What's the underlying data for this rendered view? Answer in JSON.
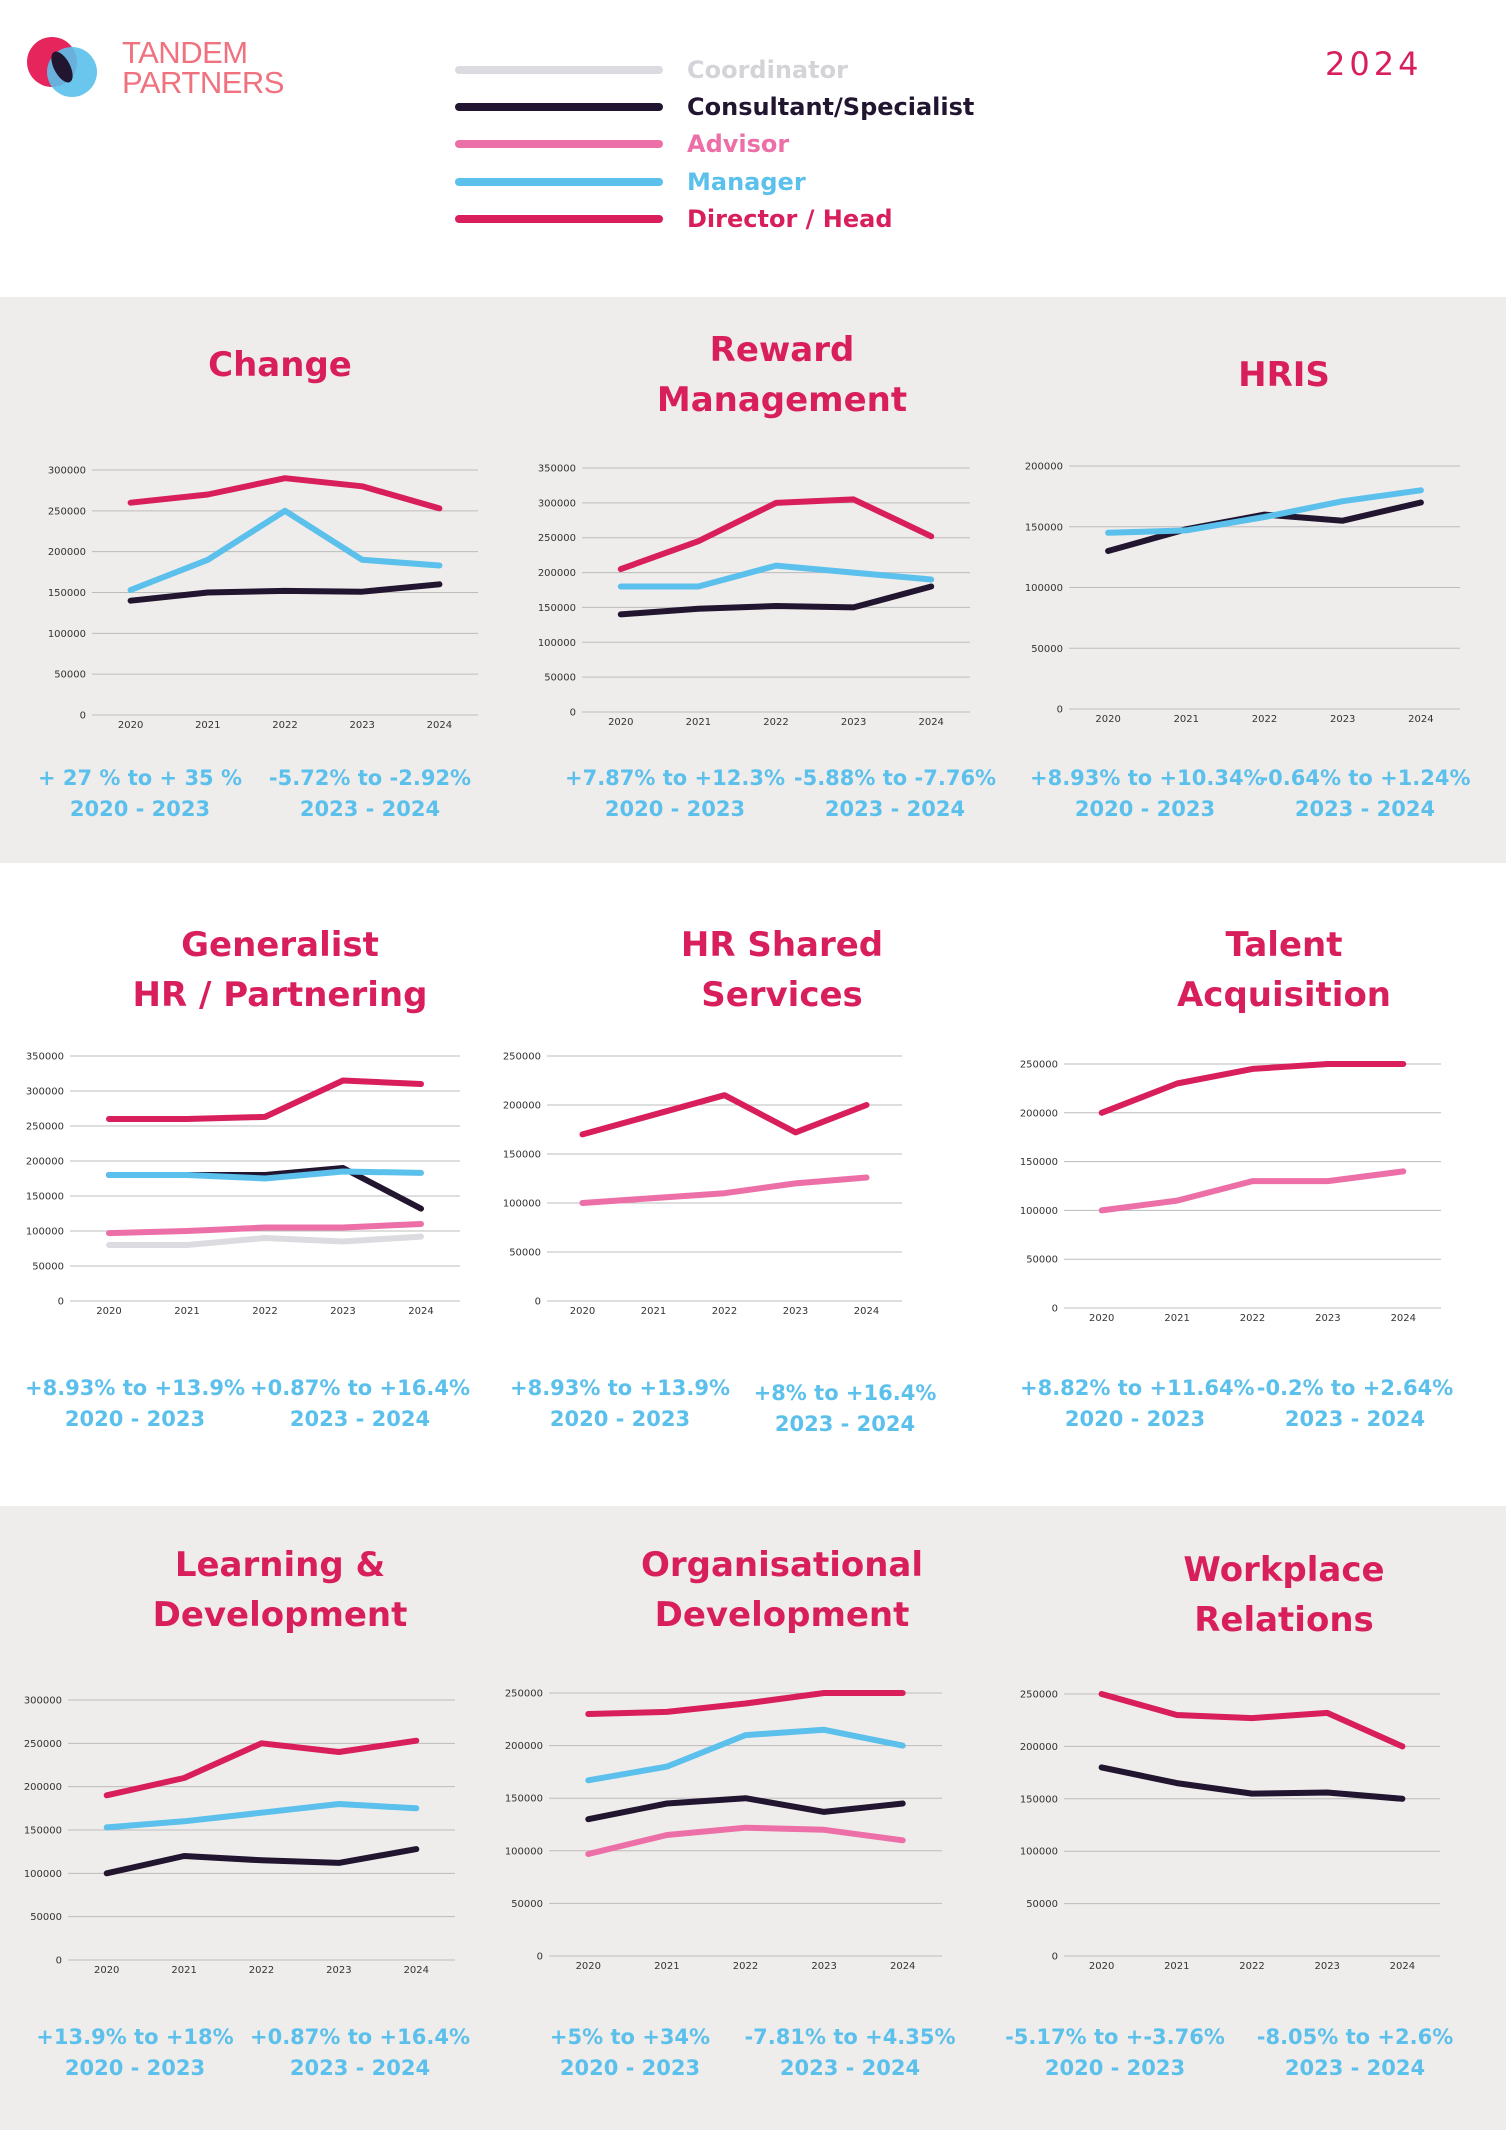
{
  "brand": {
    "name_line1": "TANDEM",
    "name_line2": "PARTNERS"
  },
  "year": "2024",
  "legend": [
    {
      "label": "Coordinator",
      "color": "#dcdbe0"
    },
    {
      "label": "Consultant/Specialist",
      "color": "#211530"
    },
    {
      "label": "Advisor",
      "color": "#ec6fa7"
    },
    {
      "label": "Manager",
      "color": "#5bc0eb"
    },
    {
      "label": "Director / Head",
      "color": "#d81f5c"
    }
  ],
  "chart_data": [
    {
      "type": "line",
      "title": "Change",
      "categories": [
        "2020",
        "2021",
        "2022",
        "2023",
        "2024"
      ],
      "ylim": [
        0,
        300000
      ],
      "yticks": [
        "300000",
        "250000",
        "200000",
        "150000",
        "100000",
        "50000",
        "0"
      ],
      "series": [
        {
          "name": "Director / Head",
          "values": [
            260000,
            270000,
            290000,
            280000,
            253000
          ]
        },
        {
          "name": "Manager",
          "values": [
            153000,
            190000,
            250000,
            190000,
            183000
          ]
        },
        {
          "name": "Consultant/Specialist",
          "values": [
            140000,
            150000,
            152000,
            151000,
            160000
          ]
        }
      ],
      "stats": [
        {
          "range": "+ 27 % to + 35 %",
          "period": "2020 - 2023"
        },
        {
          "range": "-5.72% to -2.92%",
          "period": "2023 - 2024"
        }
      ]
    },
    {
      "type": "line",
      "title": "Reward Management",
      "categories": [
        "2020",
        "2021",
        "2022",
        "2023",
        "2024"
      ],
      "ylim": [
        0,
        350000
      ],
      "yticks": [
        "350000",
        "300000",
        "250000",
        "200000",
        "150000",
        "100000",
        "50000",
        "0"
      ],
      "series": [
        {
          "name": "Director / Head",
          "values": [
            205000,
            245000,
            300000,
            305000,
            252000
          ]
        },
        {
          "name": "Manager",
          "values": [
            180000,
            180000,
            210000,
            200000,
            190000
          ]
        },
        {
          "name": "Consultant/Specialist",
          "values": [
            140000,
            148000,
            152000,
            150000,
            180000
          ]
        }
      ],
      "stats": [
        {
          "range": "+7.87% to +12.3%",
          "period": "2020 - 2023"
        },
        {
          "range": "-5.88% to -7.76%",
          "period": "2023 - 2024"
        }
      ]
    },
    {
      "type": "line",
      "title": "HRIS",
      "categories": [
        "2020",
        "2021",
        "2022",
        "2023",
        "2024"
      ],
      "ylim": [
        0,
        200000
      ],
      "yticks": [
        "200000",
        "150000",
        "100000",
        "50000",
        "0"
      ],
      "series": [
        {
          "name": "Consultant/Specialist",
          "values": [
            130000,
            148000,
            160000,
            155000,
            170000
          ]
        },
        {
          "name": "Manager",
          "values": [
            145000,
            147000,
            158000,
            171000,
            180000
          ]
        }
      ],
      "stats": [
        {
          "range": "+8.93% to +10.34%",
          "period": "2020 - 2023"
        },
        {
          "range": "-0.64% to +1.24%",
          "period": "2023 - 2024"
        }
      ]
    },
    {
      "type": "line",
      "title": "Generalist HR / Partnering",
      "categories": [
        "2020",
        "2021",
        "2022",
        "2023",
        "2024"
      ],
      "ylim": [
        0,
        350000
      ],
      "yticks": [
        "350000",
        "300000",
        "250000",
        "200000",
        "150000",
        "100000",
        "50000",
        "0"
      ],
      "series": [
        {
          "name": "Director / Head",
          "values": [
            260000,
            260000,
            263000,
            315000,
            310000
          ]
        },
        {
          "name": "Consultant/Specialist",
          "values": [
            180000,
            180000,
            180000,
            190000,
            132000
          ]
        },
        {
          "name": "Manager",
          "values": [
            180000,
            180000,
            175000,
            185000,
            183000
          ]
        },
        {
          "name": "Advisor",
          "values": [
            97000,
            100000,
            105000,
            105000,
            110000
          ]
        },
        {
          "name": "Coordinator",
          "values": [
            80000,
            80000,
            90000,
            85000,
            92000
          ]
        }
      ],
      "stats": [
        {
          "range": "+8.93% to +13.9%",
          "period": "2020 - 2023"
        },
        {
          "range": "+0.87% to +16.4%",
          "period": "2023 - 2024"
        }
      ]
    },
    {
      "type": "line",
      "title": "HR Shared Services",
      "categories": [
        "2020",
        "2021",
        "2022",
        "2023",
        "2024"
      ],
      "ylim": [
        0,
        250000
      ],
      "yticks": [
        "250000",
        "200000",
        "150000",
        "100000",
        "50000",
        "0"
      ],
      "series": [
        {
          "name": "Director / Head",
          "values": [
            170000,
            190000,
            210000,
            172000,
            200000
          ]
        },
        {
          "name": "Advisor",
          "values": [
            100000,
            105000,
            110000,
            120000,
            126000
          ]
        }
      ],
      "stats": [
        {
          "range": "+8.93% to +13.9%",
          "period": "2020 - 2023"
        },
        {
          "range": "+8% to +16.4%",
          "period": "2023 - 2024"
        }
      ]
    },
    {
      "type": "line",
      "title": "Talent Acquisition",
      "categories": [
        "2020",
        "2021",
        "2022",
        "2023",
        "2024"
      ],
      "ylim": [
        0,
        250000
      ],
      "yticks": [
        "250000",
        "200000",
        "150000",
        "100000",
        "50000",
        "0"
      ],
      "series": [
        {
          "name": "Director / Head",
          "values": [
            200000,
            230000,
            245000,
            250000,
            250000
          ]
        },
        {
          "name": "Advisor",
          "values": [
            100000,
            110000,
            130000,
            130000,
            140000
          ]
        }
      ],
      "stats": [
        {
          "range": "+8.82% to +11.64%",
          "period": "2020 - 2023"
        },
        {
          "range": "-0.2% to +2.64%",
          "period": "2023 - 2024"
        }
      ]
    },
    {
      "type": "line",
      "title": "Learning & Development",
      "categories": [
        "2020",
        "2021",
        "2022",
        "2023",
        "2024"
      ],
      "ylim": [
        0,
        300000
      ],
      "yticks": [
        "300000",
        "250000",
        "200000",
        "150000",
        "100000",
        "50000",
        "0"
      ],
      "series": [
        {
          "name": "Director / Head",
          "values": [
            190000,
            210000,
            250000,
            240000,
            253000
          ]
        },
        {
          "name": "Manager",
          "values": [
            153000,
            160000,
            170000,
            180000,
            175000
          ]
        },
        {
          "name": "Consultant/Specialist",
          "values": [
            100000,
            120000,
            115000,
            112000,
            128000
          ]
        }
      ],
      "stats": [
        {
          "range": "+13.9% to +18%",
          "period": "2020 - 2023"
        },
        {
          "range": "+0.87% to +16.4%",
          "period": "2023 - 2024"
        }
      ]
    },
    {
      "type": "line",
      "title": "Organisational Development",
      "categories": [
        "2020",
        "2021",
        "2022",
        "2023",
        "2024"
      ],
      "ylim": [
        0,
        250000
      ],
      "yticks": [
        "250000",
        "200000",
        "150000",
        "100000",
        "50000",
        "0"
      ],
      "series": [
        {
          "name": "Director / Head",
          "values": [
            230000,
            232000,
            240000,
            250000,
            250000
          ]
        },
        {
          "name": "Manager",
          "values": [
            167000,
            180000,
            210000,
            215000,
            200000
          ]
        },
        {
          "name": "Consultant/Specialist",
          "values": [
            130000,
            145000,
            150000,
            137000,
            145000
          ]
        },
        {
          "name": "Advisor",
          "values": [
            97000,
            115000,
            122000,
            120000,
            110000
          ]
        }
      ],
      "stats": [
        {
          "range": "+5% to +34%",
          "period": "2020 - 2023"
        },
        {
          "range": "-7.81% to +4.35%",
          "period": "2023 - 2024"
        }
      ]
    },
    {
      "type": "line",
      "title": "Workplace Relations",
      "categories": [
        "2020",
        "2021",
        "2022",
        "2023",
        "2024"
      ],
      "ylim": [
        0,
        250000
      ],
      "yticks": [
        "250000",
        "200000",
        "150000",
        "100000",
        "50000",
        "0"
      ],
      "series": [
        {
          "name": "Director / Head",
          "values": [
            250000,
            230000,
            227000,
            232000,
            200000
          ]
        },
        {
          "name": "Consultant/Specialist",
          "values": [
            180000,
            165000,
            155000,
            156000,
            150000
          ]
        }
      ],
      "stats": [
        {
          "range": "-5.17% to +-3.76%",
          "period": "2020 - 2023"
        },
        {
          "range": "-8.05% to +2.6%",
          "period": "2023 - 2024"
        }
      ]
    }
  ]
}
